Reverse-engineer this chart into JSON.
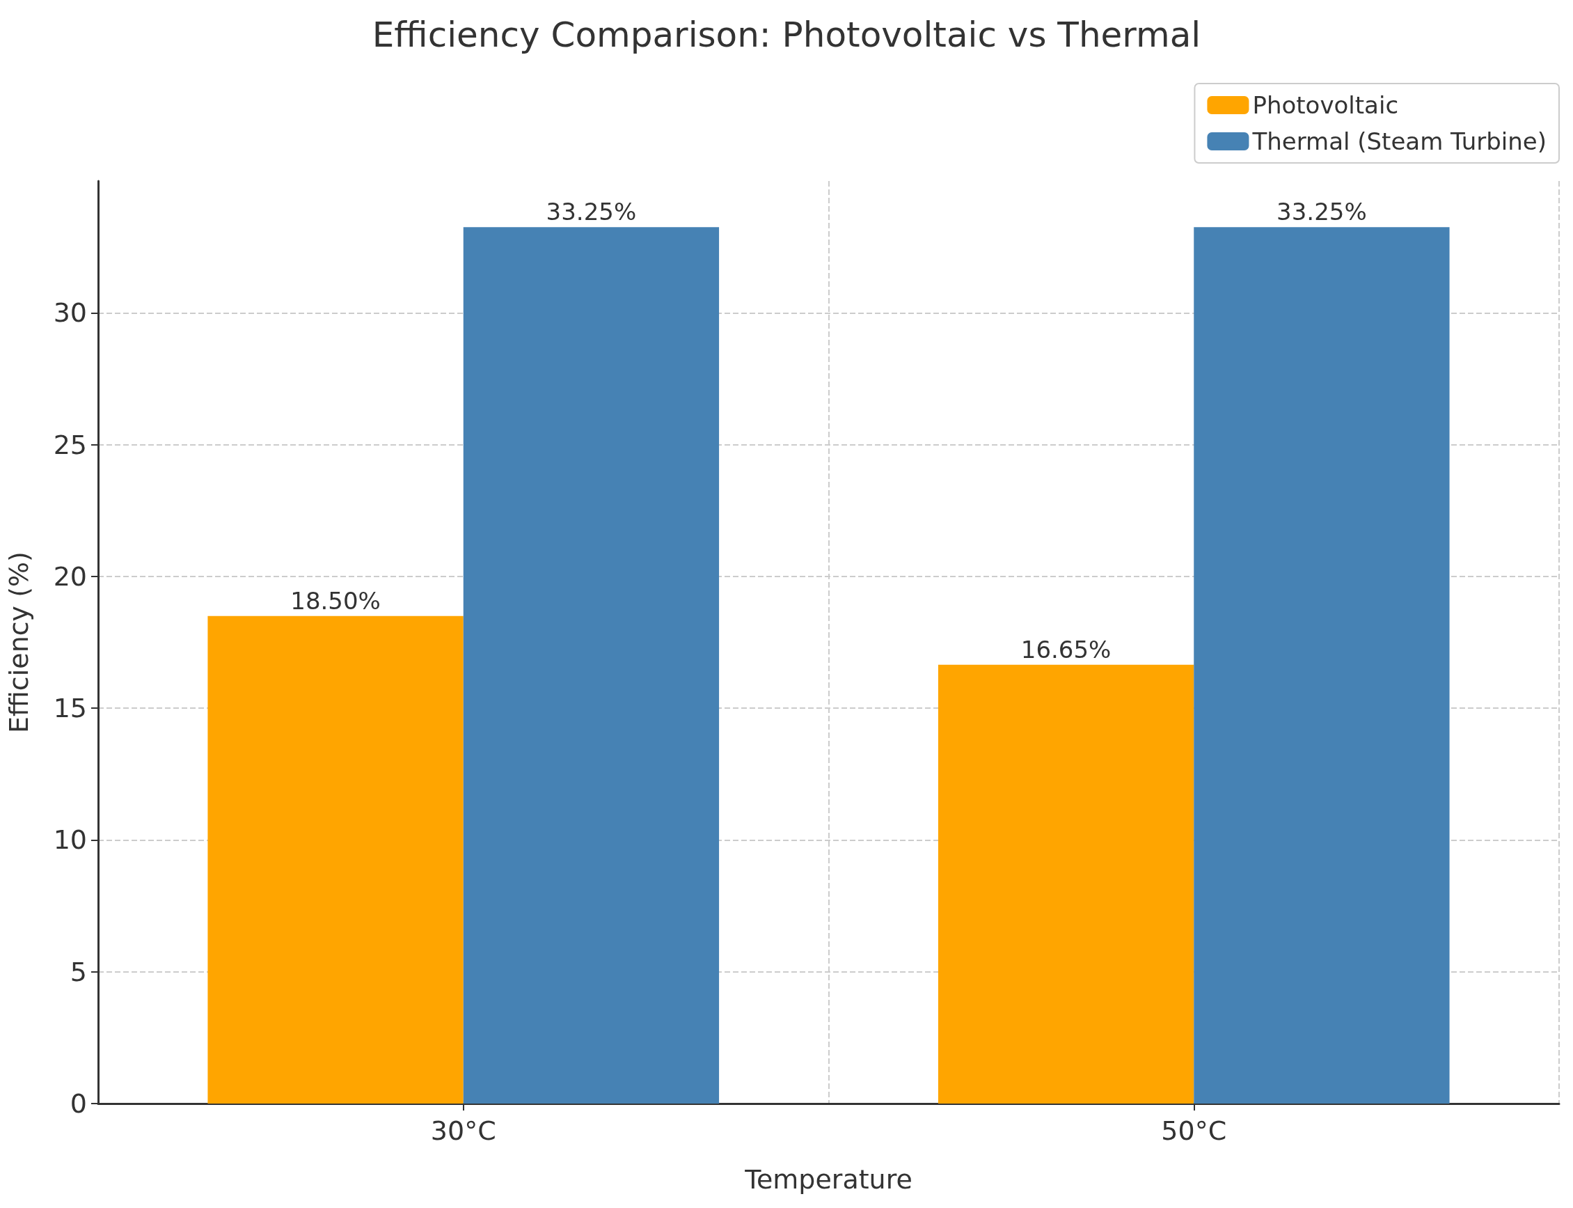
{
  "chart_data": {
    "type": "bar",
    "title": "Efficiency Comparison: Photovoltaic vs Thermal",
    "xlabel": "Temperature",
    "ylabel": "Efficiency (%)",
    "categories": [
      "30°C",
      "50°C"
    ],
    "series": [
      {
        "name": "Photovoltaic",
        "color": "#ffa500",
        "values": [
          18.5,
          16.65
        ],
        "value_labels": [
          "18.50%",
          "16.65%"
        ]
      },
      {
        "name": "Thermal (Steam Turbine)",
        "color": "#4682b4",
        "values": [
          33.25,
          33.25
        ],
        "value_labels": [
          "33.25%",
          "33.25%"
        ]
      }
    ],
    "ylim": [
      0,
      35
    ],
    "yticks": [
      0,
      5,
      10,
      15,
      20,
      25,
      30
    ],
    "grid": true,
    "legend": "top right"
  }
}
